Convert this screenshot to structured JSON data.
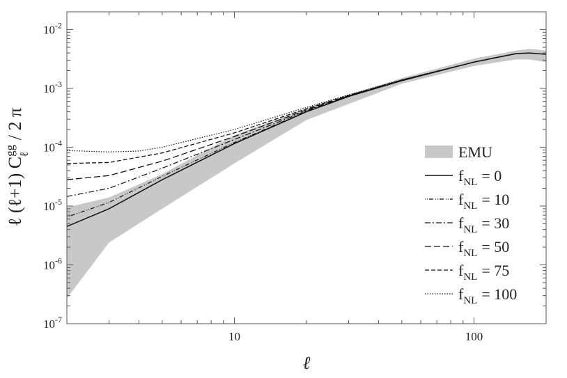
{
  "chart_data": {
    "type": "line",
    "title": "",
    "xlabel": "ℓ",
    "ylabel": "ℓ (ℓ+1) C_ℓ^gg / 2 π",
    "x_scale": "log",
    "y_scale": "log",
    "xlim": [
      2,
      200
    ],
    "ylim": [
      1e-07,
      0.02
    ],
    "x_ticks": [
      {
        "value": 10,
        "label": "10"
      },
      {
        "value": 100,
        "label": "100"
      }
    ],
    "y_ticks": [
      {
        "value": 1e-07,
        "base": "10",
        "exp": "-7"
      },
      {
        "value": 1e-06,
        "base": "10",
        "exp": "-6"
      },
      {
        "value": 1e-05,
        "base": "10",
        "exp": "-5"
      },
      {
        "value": 0.0001,
        "base": "10",
        "exp": "-4"
      },
      {
        "value": 0.001,
        "base": "10",
        "exp": "-3"
      },
      {
        "value": 0.01,
        "base": "10",
        "exp": "-2"
      }
    ],
    "legend_position": "right",
    "band": {
      "name": "EMU",
      "color": "#c8c8c8",
      "upper": [
        [
          2,
          9.5e-06
        ],
        [
          3,
          1.4e-05
        ],
        [
          5,
          3.5e-05
        ],
        [
          10,
          0.00016
        ],
        [
          20,
          0.00046
        ],
        [
          50,
          0.0015
        ],
        [
          100,
          0.0032
        ],
        [
          150,
          0.0044
        ],
        [
          170,
          0.0047
        ],
        [
          200,
          0.0044
        ]
      ],
      "lower": [
        [
          2,
          2.7e-07
        ],
        [
          3,
          2.4e-06
        ],
        [
          5,
          9e-06
        ],
        [
          10,
          5.3e-05
        ],
        [
          20,
          0.00029
        ],
        [
          50,
          0.0012
        ],
        [
          100,
          0.0024
        ],
        [
          150,
          0.0031
        ],
        [
          170,
          0.0031
        ],
        [
          200,
          0.0028
        ]
      ]
    },
    "series": [
      {
        "name": "0",
        "dash": "",
        "width": 1.5,
        "points": [
          [
            2,
            4.5e-06
          ],
          [
            3,
            9e-06
          ],
          [
            5,
            2.8e-05
          ],
          [
            10,
            0.000115
          ],
          [
            20,
            0.0004
          ],
          [
            30,
            0.00073
          ],
          [
            50,
            0.00135
          ],
          [
            100,
            0.0028
          ],
          [
            150,
            0.0039
          ],
          [
            170,
            0.004
          ],
          [
            200,
            0.0038
          ]
        ]
      },
      {
        "name": "10",
        "dash": "1,2,1,2,6,3",
        "width": 1.2,
        "points": [
          [
            2,
            6.5e-06
          ],
          [
            3,
            1.15e-05
          ],
          [
            5,
            3.2e-05
          ],
          [
            10,
            0.00012
          ],
          [
            20,
            0.000405
          ],
          [
            30,
            0.000735
          ],
          [
            50,
            0.00136
          ],
          [
            100,
            0.0028
          ],
          [
            150,
            0.0039
          ]
        ]
      },
      {
        "name": "30",
        "dash": "8,3,2,3",
        "width": 1.2,
        "points": [
          [
            2,
            1.45e-05
          ],
          [
            3,
            2e-05
          ],
          [
            5,
            4.4e-05
          ],
          [
            10,
            0.000135
          ],
          [
            20,
            0.000415
          ],
          [
            30,
            0.00074
          ],
          [
            50,
            0.00137
          ],
          [
            100,
            0.0028
          ],
          [
            150,
            0.0039
          ]
        ]
      },
      {
        "name": "50",
        "dash": "9,4",
        "width": 1.3,
        "points": [
          [
            2,
            2.8e-05
          ],
          [
            3,
            3.3e-05
          ],
          [
            5,
            5.8e-05
          ],
          [
            10,
            0.000152
          ],
          [
            20,
            0.00043
          ],
          [
            30,
            0.00075
          ],
          [
            50,
            0.00138
          ],
          [
            100,
            0.0028
          ],
          [
            150,
            0.0039
          ]
        ]
      },
      {
        "name": "75",
        "dash": "6,3",
        "width": 1.3,
        "points": [
          [
            2,
            5.3e-05
          ],
          [
            3,
            5.5e-05
          ],
          [
            5,
            8e-05
          ],
          [
            10,
            0.000175
          ],
          [
            20,
            0.00045
          ],
          [
            30,
            0.00076
          ],
          [
            50,
            0.00139
          ],
          [
            100,
            0.0028
          ],
          [
            150,
            0.0039
          ]
        ]
      },
      {
        "name": "100",
        "dash": "1.5,2",
        "width": 1.2,
        "points": [
          [
            2,
            8.8e-05
          ],
          [
            3,
            8.3e-05
          ],
          [
            4,
            8.6e-05
          ],
          [
            5,
            0.0001
          ],
          [
            10,
            0.0002
          ],
          [
            20,
            0.000475
          ],
          [
            30,
            0.00078
          ],
          [
            50,
            0.0014
          ],
          [
            100,
            0.0028
          ],
          [
            150,
            0.0039
          ]
        ]
      }
    ],
    "legend": {
      "band_label": "EMU",
      "series_prefix_base": "f",
      "series_prefix_sub": "NL",
      "equals": "= "
    },
    "ylabel_parts": {
      "pre": "ℓ (ℓ+1) C",
      "sup": "gg",
      "sub": "ℓ",
      "post": " / 2 π"
    }
  }
}
